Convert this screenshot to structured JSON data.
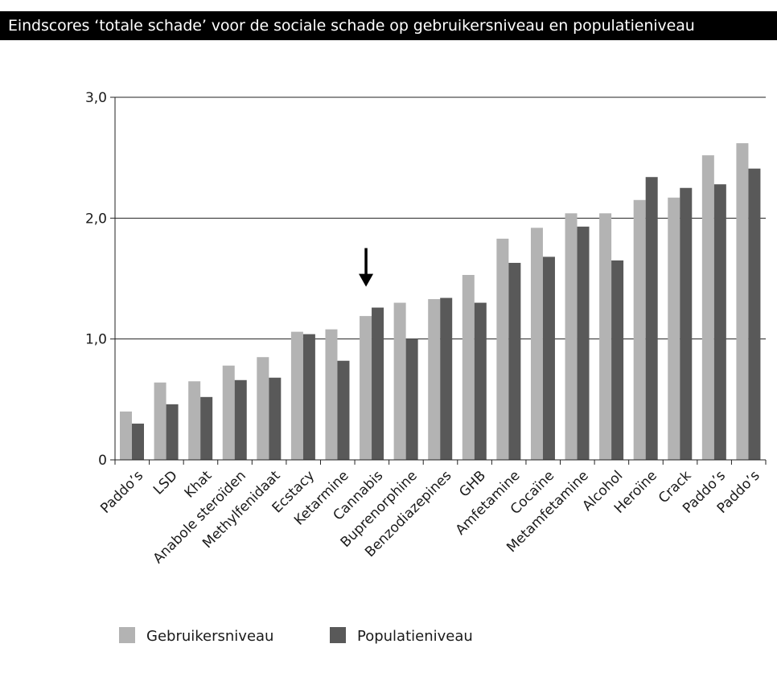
{
  "header": {
    "title": "Eindscores ‘totale schade’ voor de sociale schade op gebruikersniveau en populatieniveau"
  },
  "chart_data": {
    "type": "bar",
    "title": "Eindscores ‘totale schade’ voor de sociale schade op gebruikersniveau en populatieniveau",
    "xlabel": "",
    "ylabel": "",
    "ylim": [
      0,
      3.0
    ],
    "yticks": [
      {
        "value": 0,
        "label": "0"
      },
      {
        "value": 1.0,
        "label": "1,0"
      },
      {
        "value": 2.0,
        "label": "2,0"
      },
      {
        "value": 3.0,
        "label": "3,0"
      }
    ],
    "grid": true,
    "legend": "bottom-left",
    "categories": [
      "Paddo’s",
      "LSD",
      "Khat",
      "Anabole steroïden",
      "Methylfenidaat",
      "Ecstacy",
      "Ketarmine",
      "Cannabis",
      "Buprenorphine",
      "Benzodiazepines",
      "GHB",
      "Amfetamine",
      "Cocaïne",
      "Metamfetamine",
      "Alcohol",
      "Heroïne",
      "Crack",
      "Paddo’s",
      "Paddo’s"
    ],
    "series": [
      {
        "name": "Gebruikersniveau",
        "color": "#b3b3b3",
        "values": [
          0.4,
          0.64,
          0.65,
          0.78,
          0.85,
          1.06,
          1.08,
          1.19,
          1.3,
          1.33,
          1.53,
          1.83,
          1.92,
          2.04,
          2.04,
          2.15,
          2.17,
          2.52,
          2.62
        ]
      },
      {
        "name": "Populatieniveau",
        "color": "#595959",
        "values": [
          0.3,
          0.46,
          0.52,
          0.66,
          0.68,
          1.04,
          0.82,
          1.26,
          1.0,
          1.34,
          1.3,
          1.63,
          1.68,
          1.93,
          1.65,
          2.34,
          2.25,
          2.28,
          2.41
        ]
      }
    ],
    "annotations": [
      {
        "type": "arrow",
        "target_category_index": 7,
        "direction": "down"
      }
    ]
  }
}
